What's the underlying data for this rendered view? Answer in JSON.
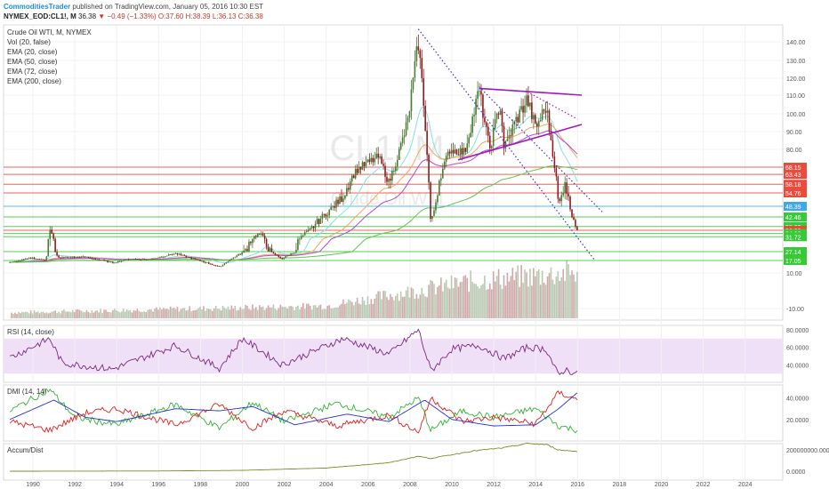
{
  "header": {
    "author": "CommoditiesTrader",
    "published": "published on TradingView.com, January 05, 2016 10:30 EST",
    "symbol": "NYMEX_EOD:CL1!, M",
    "last": "36.38",
    "change": "−0.49 (−1.33%)",
    "open": "O:37.60",
    "high": "H:38.39",
    "low": "L:36.13",
    "close": "C:36.38"
  },
  "legend": [
    "Crude Oil WTI, M, NYMEX",
    "Vol (20, false)",
    "EMA (20, close)",
    "EMA (50, close)",
    "EMA (72, close)",
    "EMA (200, close)"
  ],
  "watermark": {
    "symbol": "CL1! M",
    "name": "Crude Oil WTI"
  },
  "colors": {
    "up": "#4a7a33",
    "down": "#8c1c1c",
    "ema20": "#7fe3e3",
    "ema50": "#f4a460",
    "ema72": "#b04ad0",
    "ema200": "#5ec84a",
    "resistance": "#e74c3c",
    "support": "#38c838",
    "trend": "#3b2fcf",
    "triangle": "#a018c0",
    "rsi": "#7a2a7a",
    "rsi_band": "#efe0f8",
    "di_plus": "#33b233",
    "di_minus": "#e02020",
    "adx": "#2233cc",
    "accdist": "#7d8a26"
  },
  "chart_data": [
    {
      "type": "candlestick",
      "title": "Crude Oil WTI, M, NYMEX",
      "x_ticks": [
        "1990",
        "1992",
        "1994",
        "1996",
        "1998",
        "2000",
        "2002",
        "2004",
        "2006",
        "2008",
        "2010",
        "2012",
        "2014",
        "2016",
        "2018",
        "2020",
        "2022",
        "2024"
      ],
      "y_ticks": [
        140,
        130,
        120,
        110,
        100,
        90,
        80,
        10,
        -10
      ],
      "price_ticks_note": "log scale",
      "anchors": [
        {
          "x": 1988.9,
          "y": 15
        },
        {
          "x": 1990.0,
          "y": 20
        },
        {
          "x": 1990.6,
          "y": 17
        },
        {
          "x": 1990.8,
          "y": 38
        },
        {
          "x": 1991.2,
          "y": 20
        },
        {
          "x": 1992.5,
          "y": 21
        },
        {
          "x": 1993.8,
          "y": 15
        },
        {
          "x": 1994.7,
          "y": 19
        },
        {
          "x": 1995.5,
          "y": 18
        },
        {
          "x": 1996.8,
          "y": 25
        },
        {
          "x": 1997.5,
          "y": 20
        },
        {
          "x": 1998.9,
          "y": 11
        },
        {
          "x": 2000.0,
          "y": 26
        },
        {
          "x": 2000.8,
          "y": 34
        },
        {
          "x": 2001.9,
          "y": 19
        },
        {
          "x": 2003.0,
          "y": 34
        },
        {
          "x": 2004.8,
          "y": 53
        },
        {
          "x": 2005.5,
          "y": 67
        },
        {
          "x": 2006.5,
          "y": 75
        },
        {
          "x": 2007.0,
          "y": 58
        },
        {
          "x": 2007.9,
          "y": 96
        },
        {
          "x": 2008.4,
          "y": 140
        },
        {
          "x": 2008.7,
          "y": 100
        },
        {
          "x": 2009.0,
          "y": 38
        },
        {
          "x": 2009.4,
          "y": 60
        },
        {
          "x": 2009.9,
          "y": 80
        },
        {
          "x": 2010.6,
          "y": 78
        },
        {
          "x": 2011.3,
          "y": 113
        },
        {
          "x": 2011.8,
          "y": 80
        },
        {
          "x": 2012.3,
          "y": 106
        },
        {
          "x": 2012.5,
          "y": 80
        },
        {
          "x": 2013.0,
          "y": 95
        },
        {
          "x": 2013.6,
          "y": 108
        },
        {
          "x": 2014.0,
          "y": 92
        },
        {
          "x": 2014.5,
          "y": 104
        },
        {
          "x": 2014.8,
          "y": 80
        },
        {
          "x": 2015.1,
          "y": 48
        },
        {
          "x": 2015.4,
          "y": 60
        },
        {
          "x": 2015.7,
          "y": 45
        },
        {
          "x": 2016.0,
          "y": 36.38
        }
      ],
      "horizontal_levels": [
        {
          "label": "68.15",
          "value": 68.15,
          "color": "#e74c3c"
        },
        {
          "label": "63.43",
          "value": 63.43,
          "color": "#e74c3c"
        },
        {
          "label": "58.18",
          "value": 58.18,
          "color": "#e74c3c"
        },
        {
          "label": "54.76",
          "value": 54.76,
          "color": "#e74c3c"
        },
        {
          "label": "48.39",
          "value": 48.39,
          "color": "#3fa8e8"
        },
        {
          "label": "42.46",
          "value": 42.46,
          "color": "#38c838"
        },
        {
          "label": "38.09",
          "value": 38.09,
          "color": "#38c838"
        },
        {
          "label": "36.38",
          "value": 36.38,
          "color": "#e74c3c"
        },
        {
          "label": "34.03",
          "value": 34.03,
          "color": "#38c838"
        },
        {
          "label": "31.72",
          "value": 31.72,
          "color": "#38c838"
        },
        {
          "label": "27.14",
          "value": 27.14,
          "color": "#38c838"
        },
        {
          "label": "17.05",
          "value": 17.05,
          "color": "#38c838"
        }
      ],
      "trendlines": [
        {
          "from": [
            2008.4,
            147
          ],
          "to": [
            2016.8,
            18
          ],
          "style": "dotted",
          "color": "#3b2fcf"
        },
        {
          "from": [
            2011.3,
            115
          ],
          "to": [
            2017.2,
            45
          ],
          "style": "dotted",
          "color": "#3b2fcf"
        },
        {
          "from": [
            2013.6,
            112
          ],
          "to": [
            2016.0,
            97
          ],
          "style": "dotted",
          "color": "#a018c0"
        },
        {
          "from": [
            2011.3,
            114
          ],
          "to": [
            2016.2,
            110
          ],
          "style": "solid",
          "color": "#a018c0"
        },
        {
          "from": [
            2010.3,
            73
          ],
          "to": [
            2016.2,
            94
          ],
          "style": "solid",
          "color": "#a018c0"
        }
      ],
      "volume_note": "Vol (20, false)"
    },
    {
      "type": "line",
      "title": "RSI (14, close)",
      "y_ticks": [
        "80.0000",
        "60.0000",
        "40.0000"
      ],
      "band": [
        30,
        70
      ],
      "anchors": [
        {
          "x": 1988.9,
          "y": 48
        },
        {
          "x": 1990.8,
          "y": 70
        },
        {
          "x": 1991.4,
          "y": 42
        },
        {
          "x": 1993.8,
          "y": 35
        },
        {
          "x": 1996.8,
          "y": 62
        },
        {
          "x": 1998.9,
          "y": 36
        },
        {
          "x": 2000.0,
          "y": 70
        },
        {
          "x": 2001.9,
          "y": 40
        },
        {
          "x": 2004.8,
          "y": 70
        },
        {
          "x": 2007.0,
          "y": 52
        },
        {
          "x": 2008.4,
          "y": 80
        },
        {
          "x": 2009.0,
          "y": 33
        },
        {
          "x": 2010.0,
          "y": 58
        },
        {
          "x": 2011.3,
          "y": 62
        },
        {
          "x": 2012.5,
          "y": 47
        },
        {
          "x": 2013.6,
          "y": 60
        },
        {
          "x": 2014.5,
          "y": 58
        },
        {
          "x": 2015.1,
          "y": 27
        },
        {
          "x": 2015.4,
          "y": 35
        },
        {
          "x": 2016.0,
          "y": 29
        }
      ]
    },
    {
      "type": "line",
      "title": "DMI (14, 14)",
      "y_ticks": [
        "40.0000",
        "20.0000"
      ],
      "series": [
        {
          "name": "+DI",
          "anchors": [
            {
              "x": 1988.9,
              "y": 28
            },
            {
              "x": 1990.8,
              "y": 48
            },
            {
              "x": 1992.0,
              "y": 22
            },
            {
              "x": 1994.0,
              "y": 15
            },
            {
              "x": 1996.8,
              "y": 34
            },
            {
              "x": 1998.9,
              "y": 12
            },
            {
              "x": 2000.5,
              "y": 36
            },
            {
              "x": 2002.0,
              "y": 18
            },
            {
              "x": 2004.5,
              "y": 35
            },
            {
              "x": 2007.0,
              "y": 22
            },
            {
              "x": 2008.4,
              "y": 40
            },
            {
              "x": 2009.0,
              "y": 10
            },
            {
              "x": 2010.5,
              "y": 28
            },
            {
              "x": 2012.0,
              "y": 22
            },
            {
              "x": 2014.0,
              "y": 30
            },
            {
              "x": 2015.1,
              "y": 14
            },
            {
              "x": 2016.0,
              "y": 10
            }
          ]
        },
        {
          "name": "-DI",
          "anchors": [
            {
              "x": 1988.9,
              "y": 18
            },
            {
              "x": 1990.8,
              "y": 10
            },
            {
              "x": 1992.5,
              "y": 26
            },
            {
              "x": 1994.0,
              "y": 30
            },
            {
              "x": 1996.8,
              "y": 15
            },
            {
              "x": 1998.9,
              "y": 34
            },
            {
              "x": 2000.5,
              "y": 12
            },
            {
              "x": 2002.0,
              "y": 28
            },
            {
              "x": 2004.5,
              "y": 14
            },
            {
              "x": 2007.0,
              "y": 24
            },
            {
              "x": 2008.4,
              "y": 8
            },
            {
              "x": 2009.0,
              "y": 40
            },
            {
              "x": 2010.5,
              "y": 18
            },
            {
              "x": 2012.0,
              "y": 22
            },
            {
              "x": 2014.0,
              "y": 16
            },
            {
              "x": 2015.1,
              "y": 45
            },
            {
              "x": 2016.0,
              "y": 38
            }
          ]
        },
        {
          "name": "ADX",
          "anchors": [
            {
              "x": 1988.9,
              "y": 20
            },
            {
              "x": 1991.0,
              "y": 38
            },
            {
              "x": 1992.5,
              "y": 22
            },
            {
              "x": 1994.0,
              "y": 18
            },
            {
              "x": 1996.8,
              "y": 30
            },
            {
              "x": 1998.9,
              "y": 28
            },
            {
              "x": 2000.5,
              "y": 32
            },
            {
              "x": 2002.5,
              "y": 15
            },
            {
              "x": 2005.0,
              "y": 25
            },
            {
              "x": 2007.0,
              "y": 18
            },
            {
              "x": 2008.7,
              "y": 38
            },
            {
              "x": 2010.0,
              "y": 20
            },
            {
              "x": 2012.0,
              "y": 14
            },
            {
              "x": 2014.0,
              "y": 15
            },
            {
              "x": 2015.1,
              "y": 30
            },
            {
              "x": 2016.0,
              "y": 45
            }
          ]
        }
      ]
    },
    {
      "type": "area",
      "title": "Accum/Dist",
      "y_ticks": [
        "200000000.0000",
        "0.0000"
      ],
      "anchors": [
        {
          "x": 1988.9,
          "y": 0
        },
        {
          "x": 1996.0,
          "y": 2000000
        },
        {
          "x": 2000.0,
          "y": 8000000
        },
        {
          "x": 2004.0,
          "y": 30000000
        },
        {
          "x": 2007.0,
          "y": 80000000
        },
        {
          "x": 2008.4,
          "y": 140000000
        },
        {
          "x": 2009.0,
          "y": 120000000
        },
        {
          "x": 2011.0,
          "y": 190000000
        },
        {
          "x": 2012.5,
          "y": 220000000
        },
        {
          "x": 2013.6,
          "y": 260000000
        },
        {
          "x": 2014.5,
          "y": 250000000
        },
        {
          "x": 2015.1,
          "y": 200000000
        },
        {
          "x": 2016.0,
          "y": 185000000
        }
      ]
    }
  ]
}
